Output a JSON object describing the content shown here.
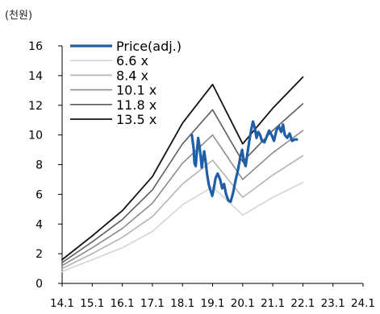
{
  "unit_label": "(천원)",
  "chart_data": {
    "type": "line",
    "ylim": [
      0,
      16
    ],
    "yticks": [
      0,
      2,
      4,
      6,
      8,
      10,
      12,
      14,
      16
    ],
    "x_tick_labels": [
      "14.1",
      "15.1",
      "16.1",
      "17.1",
      "18.1",
      "19.1",
      "20.1",
      "21.1",
      "22.1",
      "23.1",
      "24.1"
    ],
    "grid": false,
    "legend_position": "top-left",
    "series": [
      {
        "name": "Price(adj.)",
        "color": "#1f5fa8",
        "width": 3.2,
        "points": [
          [
            18.41,
            10.0
          ],
          [
            18.47,
            9.1
          ],
          [
            18.5,
            8.1
          ],
          [
            18.54,
            7.9
          ],
          [
            18.58,
            8.9
          ],
          [
            18.62,
            9.8
          ],
          [
            18.66,
            9.3
          ],
          [
            18.7,
            8.6
          ],
          [
            18.74,
            7.8
          ],
          [
            18.78,
            8.4
          ],
          [
            18.82,
            8.9
          ],
          [
            18.87,
            8.2
          ],
          [
            18.92,
            7.3
          ],
          [
            18.98,
            6.6
          ],
          [
            19.04,
            6.2
          ],
          [
            19.09,
            5.9
          ],
          [
            19.14,
            6.4
          ],
          [
            19.2,
            7.1
          ],
          [
            19.27,
            7.4
          ],
          [
            19.35,
            7.0
          ],
          [
            19.42,
            6.4
          ],
          [
            19.48,
            6.7
          ],
          [
            19.55,
            6.0
          ],
          [
            19.62,
            5.6
          ],
          [
            19.7,
            5.5
          ],
          [
            19.78,
            6.1
          ],
          [
            19.86,
            6.9
          ],
          [
            19.94,
            7.6
          ],
          [
            20.02,
            8.5
          ],
          [
            20.08,
            9.0
          ],
          [
            20.14,
            8.2
          ],
          [
            20.2,
            7.9
          ],
          [
            20.26,
            8.8
          ],
          [
            20.32,
            9.6
          ],
          [
            20.38,
            10.3
          ],
          [
            20.44,
            10.9
          ],
          [
            20.5,
            10.5
          ],
          [
            20.56,
            9.8
          ],
          [
            20.62,
            10.2
          ],
          [
            20.68,
            10.0
          ],
          [
            20.74,
            9.6
          ],
          [
            20.82,
            9.5
          ],
          [
            20.9,
            9.9
          ],
          [
            20.98,
            10.3
          ],
          [
            21.06,
            10.0
          ],
          [
            21.14,
            9.6
          ],
          [
            21.22,
            10.3
          ],
          [
            21.3,
            10.6
          ],
          [
            21.38,
            10.2
          ],
          [
            21.44,
            10.7
          ],
          [
            21.5,
            10.0
          ],
          [
            21.58,
            9.8
          ],
          [
            21.66,
            10.1
          ],
          [
            21.74,
            9.6
          ],
          [
            21.82,
            9.7
          ],
          [
            21.9,
            9.7
          ]
        ]
      },
      {
        "name": "6.6 x",
        "color": "#d4d4d4",
        "width": 1.6,
        "points": [
          [
            14.1,
            0.8
          ],
          [
            15.1,
            1.6
          ],
          [
            16.1,
            2.4
          ],
          [
            17.1,
            3.5
          ],
          [
            18.1,
            5.3
          ],
          [
            19.1,
            6.5
          ],
          [
            20.1,
            4.6
          ],
          [
            21.1,
            5.8
          ],
          [
            22.1,
            6.8
          ]
        ]
      },
      {
        "name": "8.4 x",
        "color": "#b3b3b3",
        "width": 1.6,
        "points": [
          [
            14.1,
            1.0
          ],
          [
            15.1,
            2.0
          ],
          [
            16.1,
            3.1
          ],
          [
            17.1,
            4.5
          ],
          [
            18.1,
            6.7
          ],
          [
            19.1,
            8.3
          ],
          [
            20.1,
            5.8
          ],
          [
            21.1,
            7.3
          ],
          [
            22.1,
            8.6
          ]
        ]
      },
      {
        "name": "10.1 x",
        "color": "#8c8c8c",
        "width": 1.6,
        "points": [
          [
            14.1,
            1.2
          ],
          [
            15.1,
            2.4
          ],
          [
            16.1,
            3.7
          ],
          [
            17.1,
            5.4
          ],
          [
            18.1,
            8.1
          ],
          [
            19.1,
            10.0
          ],
          [
            20.1,
            7.0
          ],
          [
            21.1,
            8.8
          ],
          [
            22.1,
            10.3
          ]
        ]
      },
      {
        "name": "11.8 x",
        "color": "#5e5e5e",
        "width": 1.6,
        "points": [
          [
            14.1,
            1.4
          ],
          [
            15.1,
            2.8
          ],
          [
            16.1,
            4.3
          ],
          [
            17.1,
            6.3
          ],
          [
            18.1,
            9.4
          ],
          [
            19.1,
            11.7
          ],
          [
            20.1,
            8.2
          ],
          [
            21.1,
            10.3
          ],
          [
            22.1,
            12.1
          ]
        ]
      },
      {
        "name": "13.5 x",
        "color": "#111111",
        "width": 1.8,
        "points": [
          [
            14.1,
            1.6
          ],
          [
            15.1,
            3.2
          ],
          [
            16.1,
            4.9
          ],
          [
            17.1,
            7.2
          ],
          [
            18.1,
            10.8
          ],
          [
            19.1,
            13.4
          ],
          [
            20.1,
            9.4
          ],
          [
            21.1,
            11.8
          ],
          [
            22.1,
            13.9
          ]
        ]
      }
    ]
  }
}
